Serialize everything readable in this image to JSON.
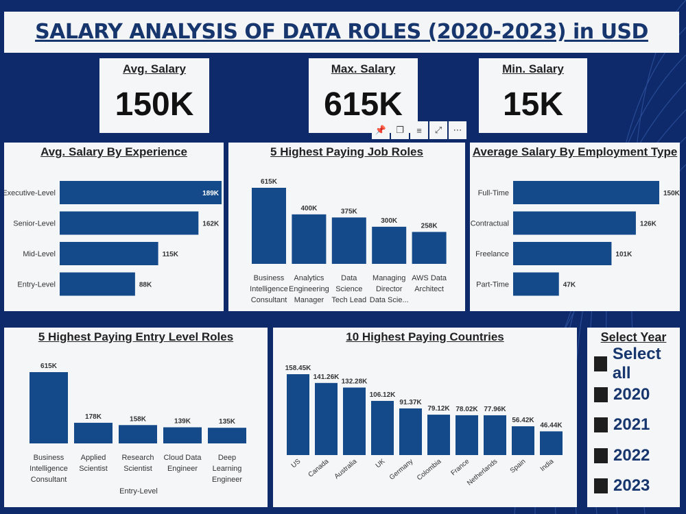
{
  "title": "SALARY ANALYSIS OF DATA ROLES (2020-2023) in USD",
  "kpis": {
    "avg": {
      "label": "Avg. Salary",
      "value": "150K"
    },
    "max": {
      "label": "Max. Salary",
      "value": "615K"
    },
    "min": {
      "label": "Min. Salary",
      "value": "15K"
    }
  },
  "toolbar": [
    "pin-icon",
    "copy-icon",
    "filter-icon",
    "focus-mode-icon",
    "more-options-icon"
  ],
  "colors": {
    "bar": "#144a8a",
    "background": "#0e2a6b",
    "panel": "#f5f6f8",
    "title": "#17366e"
  },
  "slicer": {
    "title": "Select Year",
    "items": [
      "Select all",
      "2020",
      "2021",
      "2022",
      "2023"
    ]
  },
  "chart_data": [
    {
      "id": "experience",
      "type": "bar",
      "orientation": "horizontal",
      "title": "Avg. Salary By Experience",
      "categories": [
        "Executive-Level",
        "Senior-Level",
        "Mid-Level",
        "Entry-Level"
      ],
      "values": [
        189,
        162,
        115,
        88
      ],
      "labels": [
        "189K",
        "162K",
        "115K",
        "88K"
      ],
      "unit": "K USD"
    },
    {
      "id": "jobs",
      "type": "bar",
      "title": "5 Highest Paying Job Roles",
      "categories": [
        [
          "Business",
          "Intelligence",
          "Consultant"
        ],
        [
          "Analytics",
          "Engineering",
          "Manager"
        ],
        [
          "Data",
          "Science",
          "Tech Lead"
        ],
        [
          "Managing",
          "Director",
          "Data Scie..."
        ],
        [
          "AWS Data",
          "Architect"
        ]
      ],
      "values": [
        615,
        400,
        375,
        300,
        258
      ],
      "labels": [
        "615K",
        "400K",
        "375K",
        "300K",
        "258K"
      ],
      "unit": "K USD"
    },
    {
      "id": "employment",
      "type": "bar",
      "orientation": "horizontal",
      "title": "Average Salary By Employment Type",
      "categories": [
        "Full-Time",
        "Contractual",
        "Freelance",
        "Part-Time"
      ],
      "values": [
        150,
        126,
        101,
        47
      ],
      "labels": [
        "150K",
        "126K",
        "101K",
        "47K"
      ],
      "unit": "K USD"
    },
    {
      "id": "entry",
      "type": "bar",
      "title": "5 Highest Paying Entry Level Roles",
      "xlabel": "Entry-Level",
      "categories": [
        [
          "Business",
          "Intelligence",
          "Consultant"
        ],
        [
          "Applied",
          "Scientist"
        ],
        [
          "Research",
          "Scientist"
        ],
        [
          "Cloud Data",
          "Engineer"
        ],
        [
          "Deep",
          "Learning",
          "Engineer"
        ]
      ],
      "values": [
        615,
        178,
        158,
        139,
        135
      ],
      "labels": [
        "615K",
        "178K",
        "158K",
        "139K",
        "135K"
      ],
      "unit": "K USD"
    },
    {
      "id": "countries",
      "type": "bar",
      "title": "10 Highest Paying Countries",
      "categories": [
        "US",
        "Canada",
        "Australia",
        "UK",
        "Germany",
        "Colombia",
        "France",
        "Netherlands",
        "Spain",
        "India"
      ],
      "values": [
        158.45,
        141.26,
        132.28,
        106.12,
        91.37,
        79.12,
        78.02,
        77.96,
        56.42,
        46.44
      ],
      "labels": [
        "158.45K",
        "141.26K",
        "132.28K",
        "106.12K",
        "91.37K",
        "79.12K",
        "78.02K",
        "77.96K",
        "56.42K",
        "46.44K"
      ],
      "unit": "K USD"
    }
  ]
}
